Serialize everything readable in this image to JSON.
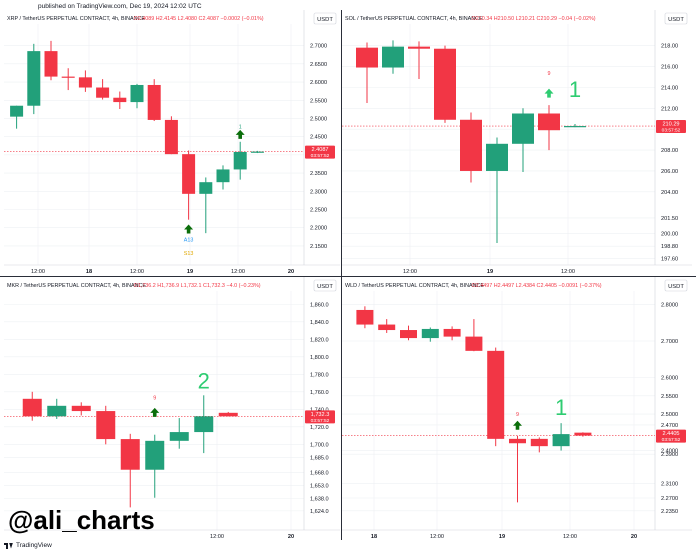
{
  "header": {
    "published_note": "published on TradingView.com, Dec 19, 2024 12:02 UTC"
  },
  "footer": {
    "handle": "@ali_charts",
    "brand": "TradingView"
  },
  "colors": {
    "up": "#22a07a",
    "down": "#f23645",
    "green_text": "#2ecc71",
    "signal_green": "#0b6e0b",
    "price_line": "#5ab4ea",
    "grid": "#eef0f3"
  },
  "chart_data": [
    {
      "type": "candlestick",
      "title": "XRP / TetherUS PERPETUAL CONTRACT, 4h, BINANCE",
      "ohlc_text": {
        "o": "O2.4089",
        "h": "H2.4145",
        "l": "L2.4080",
        "c": "C2.4087",
        "chg": "−0.0002 (−0.01%)"
      },
      "currency": "USDT",
      "y_ticks": [
        "2.7000",
        "2.6500",
        "2.6000",
        "2.5500",
        "2.5000",
        "2.4500",
        "2.4000",
        "2.3500",
        "2.3000",
        "2.2500",
        "2.2000",
        "2.1500"
      ],
      "ylim": [
        2.125,
        2.7375
      ],
      "x_ticks": [
        "12:00",
        "18",
        "12:00",
        "19",
        "12:00",
        "20"
      ],
      "last_price": "2.4087",
      "countdown": "03:57:52",
      "candles": [
        {
          "o": 2.505,
          "h": 2.535,
          "l": 2.472,
          "c": 2.535
        },
        {
          "o": 2.535,
          "h": 2.705,
          "l": 2.512,
          "c": 2.685
        },
        {
          "o": 2.685,
          "h": 2.713,
          "l": 2.605,
          "c": 2.615
        },
        {
          "o": 2.615,
          "h": 2.638,
          "l": 2.578,
          "c": 2.613
        },
        {
          "o": 2.613,
          "h": 2.632,
          "l": 2.573,
          "c": 2.585
        },
        {
          "o": 2.585,
          "h": 2.608,
          "l": 2.552,
          "c": 2.557
        },
        {
          "o": 2.557,
          "h": 2.574,
          "l": 2.526,
          "c": 2.545
        },
        {
          "o": 2.545,
          "h": 2.595,
          "l": 2.528,
          "c": 2.592
        },
        {
          "o": 2.592,
          "h": 2.608,
          "l": 2.493,
          "c": 2.496
        },
        {
          "o": 2.496,
          "h": 2.506,
          "l": 2.402,
          "c": 2.402
        },
        {
          "o": 2.402,
          "h": 2.412,
          "l": 2.222,
          "c": 2.293
        },
        {
          "o": 2.293,
          "h": 2.338,
          "l": 2.185,
          "c": 2.325
        },
        {
          "o": 2.325,
          "h": 2.371,
          "l": 2.305,
          "c": 2.36
        },
        {
          "o": 2.36,
          "h": 2.436,
          "l": 2.332,
          "c": 2.408
        },
        {
          "o": 2.408,
          "h": 2.411,
          "l": 2.405,
          "c": 2.409
        }
      ],
      "marker_labels": [
        {
          "text": "A13",
          "candle": 10,
          "price": 2.162,
          "color": "#2196f3"
        },
        {
          "text": "S13",
          "candle": 10,
          "price": 2.125,
          "color": "#e0a800"
        },
        {
          "text": "1",
          "candle": 13,
          "price": 2.472,
          "color": "#22a07a"
        }
      ],
      "arrows": [
        {
          "candle": 10,
          "price": 2.195
        },
        {
          "candle": 13,
          "price": 2.455
        }
      ],
      "extra_labels": []
    },
    {
      "type": "candlestick",
      "title": "SOL / TetherUS PERPETUAL CONTRACT, 4h, BINANCE",
      "ohlc_text": {
        "o": "O210.34",
        "h": "H210.50",
        "l": "L210.21",
        "c": "C210.29",
        "chg": "−0.04 (−0.02%)"
      },
      "currency": "USDT",
      "y_ticks": [
        "218.00",
        "216.00",
        "214.00",
        "212.00",
        "210.00",
        "208.00",
        "206.00",
        "204.00",
        "201.50",
        "200.00",
        "198.80",
        "197.60"
      ],
      "ylim": [
        197.0,
        219.3
      ],
      "x_ticks": [
        "12:00",
        "19",
        "12:00"
      ],
      "last_price": "210.29",
      "countdown": "03:57:52",
      "candles": [
        {
          "o": 217.8,
          "h": 218.3,
          "l": 212.5,
          "c": 215.9
        },
        {
          "o": 215.9,
          "h": 218.5,
          "l": 215.3,
          "c": 217.9
        },
        {
          "o": 217.9,
          "h": 218.4,
          "l": 214.8,
          "c": 217.7
        },
        {
          "o": 217.7,
          "h": 218.0,
          "l": 210.6,
          "c": 210.9
        },
        {
          "o": 210.9,
          "h": 211.6,
          "l": 204.9,
          "c": 206.0
        },
        {
          "o": 206.0,
          "h": 209.2,
          "l": 199.1,
          "c": 208.6
        },
        {
          "o": 208.6,
          "h": 212.0,
          "l": 205.9,
          "c": 211.5
        },
        {
          "o": 211.5,
          "h": 212.3,
          "l": 208.0,
          "c": 209.9
        },
        {
          "o": 210.3,
          "h": 210.5,
          "l": 210.2,
          "c": 210.3
        }
      ],
      "marker_labels": [
        {
          "text": "9",
          "candle": 7,
          "price": 215.2,
          "color": "#f23645"
        }
      ],
      "arrows": [
        {
          "candle": 7,
          "price": 213.4
        }
      ],
      "extra_labels": [
        {
          "text": "1",
          "candle": 8,
          "price": 213.1
        }
      ]
    },
    {
      "type": "candlestick",
      "title": "MKR / TetherUS PERPETUAL CONTRACT, 4h, BINANCE",
      "ohlc_text": {
        "o": "O1,736.2",
        "h": "H1,736.9",
        "l": "L1,732.1",
        "c": "C1,732.3",
        "chg": "−4.0 (−0.23%)"
      },
      "currency": "USDT",
      "y_ticks": [
        "1,860.0",
        "1,840.0",
        "1,820.0",
        "1,800.0",
        "1,780.0",
        "1,760.0",
        "1,740.0",
        "1,720.0",
        "1,700.0",
        "1,685.0",
        "1,668.0",
        "1,653.0",
        "1,638.0",
        "1,624.0"
      ],
      "ylim": [
        1617.0,
        1866.0
      ],
      "x_ticks": [
        "12:00",
        "20"
      ],
      "last_price": "1,732.3",
      "countdown": "03:57:52",
      "candles": [
        {
          "o": 1752.0,
          "h": 1760.0,
          "l": 1727.0,
          "c": 1732.0
        },
        {
          "o": 1732.0,
          "h": 1752.0,
          "l": 1729.0,
          "c": 1744.0
        },
        {
          "o": 1744.0,
          "h": 1748.0,
          "l": 1733.0,
          "c": 1738.0
        },
        {
          "o": 1738.0,
          "h": 1744.0,
          "l": 1700.0,
          "c": 1706.0
        },
        {
          "o": 1706.0,
          "h": 1712.0,
          "l": 1628.0,
          "c": 1671.0
        },
        {
          "o": 1671.0,
          "h": 1711.0,
          "l": 1639.0,
          "c": 1704.0
        },
        {
          "o": 1704.0,
          "h": 1730.0,
          "l": 1695.0,
          "c": 1714.0
        },
        {
          "o": 1714.0,
          "h": 1756.0,
          "l": 1690.0,
          "c": 1732.0
        },
        {
          "o": 1736.0,
          "h": 1737.0,
          "l": 1732.0,
          "c": 1732.0
        }
      ],
      "marker_labels": [
        {
          "text": "9",
          "candle": 5,
          "price": 1751.0,
          "color": "#f23645"
        }
      ],
      "arrows": [
        {
          "candle": 5,
          "price": 1736.0
        }
      ],
      "extra_labels": [
        {
          "text": "2",
          "candle": 7,
          "price": 1764.0
        }
      ]
    },
    {
      "type": "candlestick",
      "title": "WLD / TetherUS PERPETUAL CONTRACT, 4h, BINANCE",
      "ohlc_text": {
        "o": "O2.4497",
        "h": "H2.4497",
        "l": "L2.4384",
        "c": "C2.4405",
        "chg": "−0.0091 (−0.37%)"
      },
      "currency": "USDT",
      "y_ticks": [
        "2.8000",
        "2.7000",
        "2.6000",
        "2.5500",
        "2.5000",
        "2.4700",
        "2.4000",
        "2.3900",
        "2.3100",
        "2.2700",
        "2.2350"
      ],
      "ylim": [
        2.218,
        2.815
      ],
      "x_ticks": [
        "18",
        "12:00",
        "19",
        "12:00",
        "20"
      ],
      "last_price": "2.4405",
      "countdown": "03:57:52",
      "candles": [
        {
          "o": 2.785,
          "h": 2.795,
          "l": 2.735,
          "c": 2.745
        },
        {
          "o": 2.745,
          "h": 2.76,
          "l": 2.722,
          "c": 2.73
        },
        {
          "o": 2.73,
          "h": 2.742,
          "l": 2.702,
          "c": 2.708
        },
        {
          "o": 2.708,
          "h": 2.737,
          "l": 2.698,
          "c": 2.733
        },
        {
          "o": 2.733,
          "h": 2.74,
          "l": 2.702,
          "c": 2.712
        },
        {
          "o": 2.712,
          "h": 2.76,
          "l": 2.672,
          "c": 2.673
        },
        {
          "o": 2.673,
          "h": 2.682,
          "l": 2.412,
          "c": 2.432
        },
        {
          "o": 2.432,
          "h": 2.44,
          "l": 2.258,
          "c": 2.42
        },
        {
          "o": 2.432,
          "h": 2.436,
          "l": 2.395,
          "c": 2.412
        },
        {
          "o": 2.412,
          "h": 2.475,
          "l": 2.4,
          "c": 2.445
        },
        {
          "o": 2.449,
          "h": 2.45,
          "l": 2.438,
          "c": 2.441
        }
      ],
      "marker_labels": [
        {
          "text": "9",
          "candle": 7,
          "price": 2.495,
          "color": "#f23645"
        }
      ],
      "arrows": [
        {
          "candle": 7,
          "price": 2.468
        }
      ],
      "extra_labels": [
        {
          "text": "1",
          "candle": 9,
          "price": 2.498
        }
      ]
    }
  ]
}
